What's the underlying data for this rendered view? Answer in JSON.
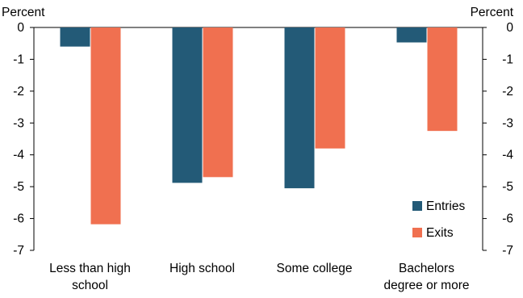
{
  "chart_data": {
    "type": "bar",
    "title": "",
    "xlabel": "",
    "ylabel_left": "Percent",
    "ylabel_right": "Percent",
    "categories": [
      [
        "Less than high",
        "school"
      ],
      [
        "High school"
      ],
      [
        "Some college"
      ],
      [
        "Bachelors",
        "degree or more"
      ]
    ],
    "series": [
      {
        "name": "Entries",
        "color": "#235A77",
        "values": [
          -0.6,
          -4.88,
          -5.05,
          -0.47
        ]
      },
      {
        "name": "Exits",
        "color": "#F07050",
        "values": [
          -6.18,
          -4.7,
          -3.8,
          -3.25
        ]
      }
    ],
    "ylim": [
      -7,
      0
    ],
    "yticks": [
      0,
      -1,
      -2,
      -3,
      -4,
      -5,
      -6,
      -7
    ],
    "legend_position": "bottom-right",
    "grid": false
  }
}
